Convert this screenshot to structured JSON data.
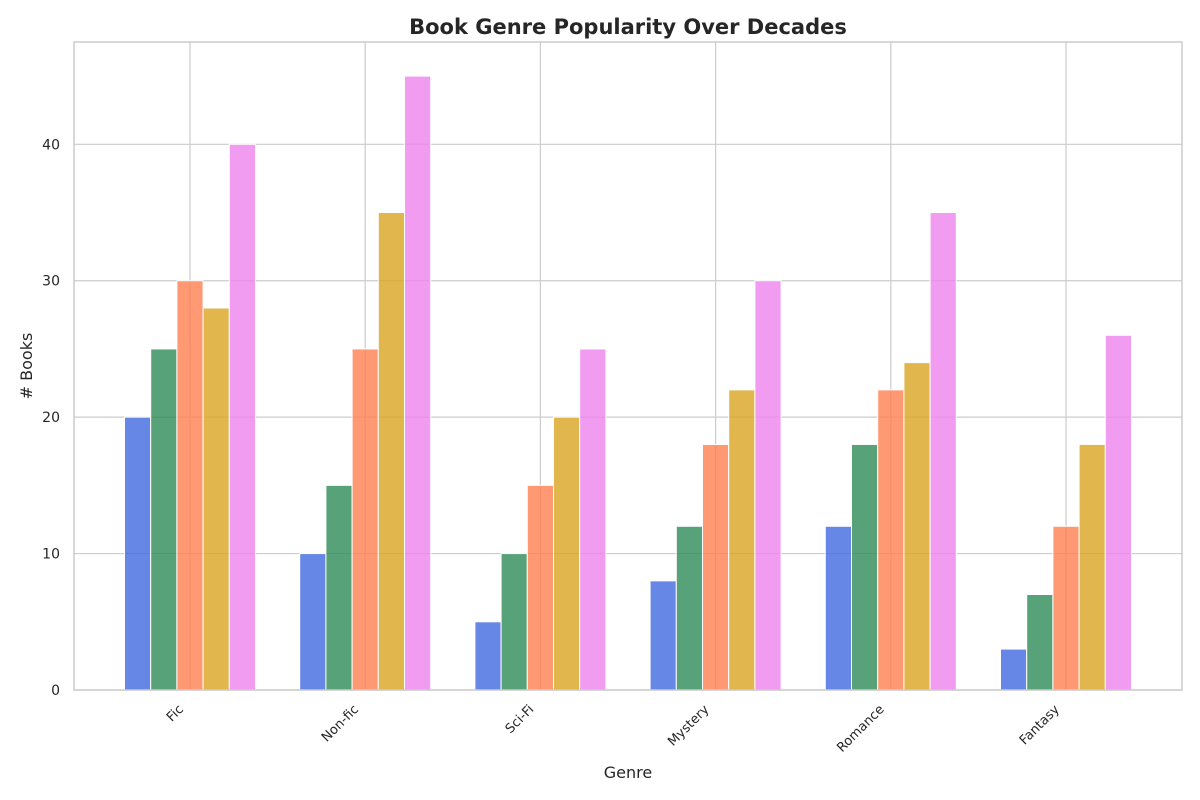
{
  "chart_data": {
    "type": "bar",
    "title": "Book Genre Popularity Over Decades",
    "xlabel": "Genre",
    "ylabel": "# Books",
    "categories": [
      "Fic",
      "Non-fic",
      "Sci-Fi",
      "Mystery",
      "Romance",
      "Fantasy"
    ],
    "ylim": [
      0,
      47.5
    ],
    "yticks": [
      0,
      10,
      20,
      30,
      40
    ],
    "grid": true,
    "legend": "none",
    "series": [
      {
        "values": [
          20,
          10,
          5,
          8,
          12,
          3
        ],
        "color": "#4169e1"
      },
      {
        "values": [
          25,
          15,
          10,
          12,
          18,
          7
        ],
        "color": "#2e8b57"
      },
      {
        "values": [
          30,
          25,
          15,
          18,
          22,
          12
        ],
        "color": "#ff7f50"
      },
      {
        "values": [
          28,
          35,
          20,
          22,
          24,
          18
        ],
        "color": "#daa520"
      },
      {
        "values": [
          40,
          45,
          25,
          30,
          35,
          26
        ],
        "color": "#ee82ee"
      }
    ]
  }
}
